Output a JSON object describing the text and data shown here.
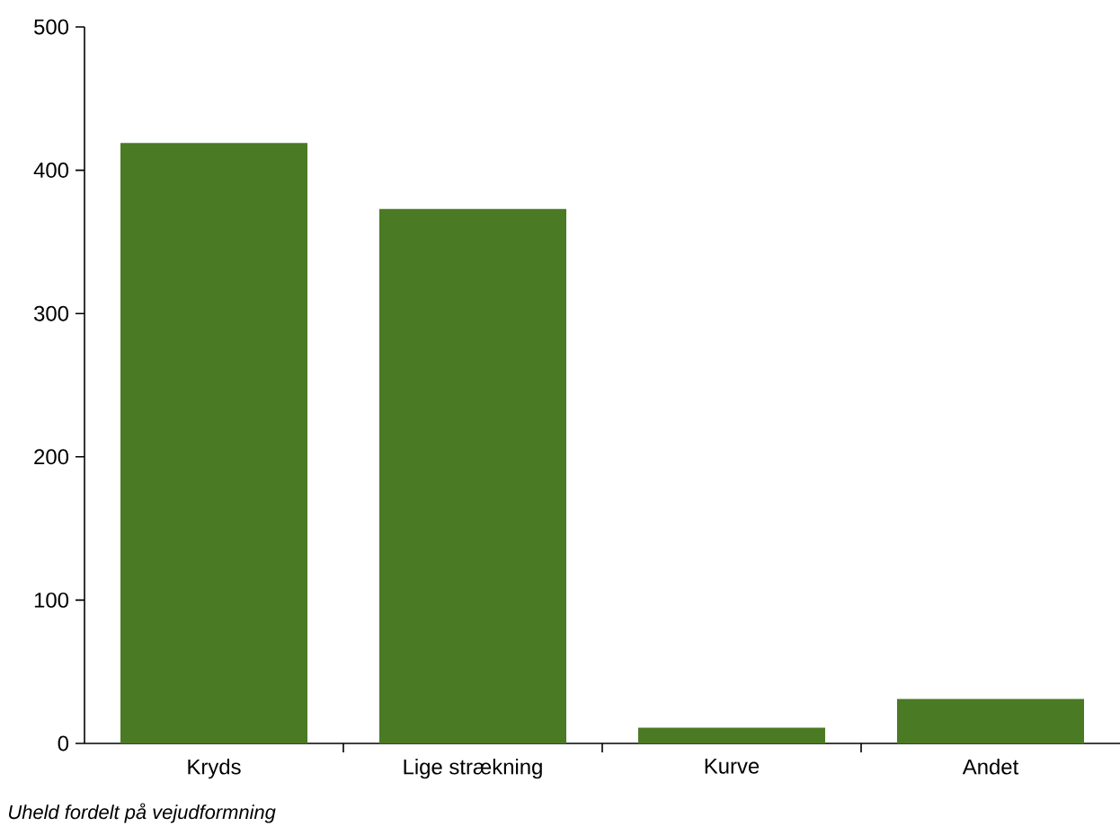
{
  "chart_data": {
    "type": "bar",
    "categories": [
      "Kryds",
      "Lige strækning",
      "Kurve",
      "Andet"
    ],
    "values": [
      419,
      373,
      11,
      31
    ],
    "color": "#4a7a23",
    "ylim": [
      0,
      500
    ],
    "yticks": [
      0,
      100,
      200,
      300,
      400,
      500
    ],
    "grid": false,
    "annotations": [
      "Uheld fordelt på vejudformning"
    ]
  }
}
